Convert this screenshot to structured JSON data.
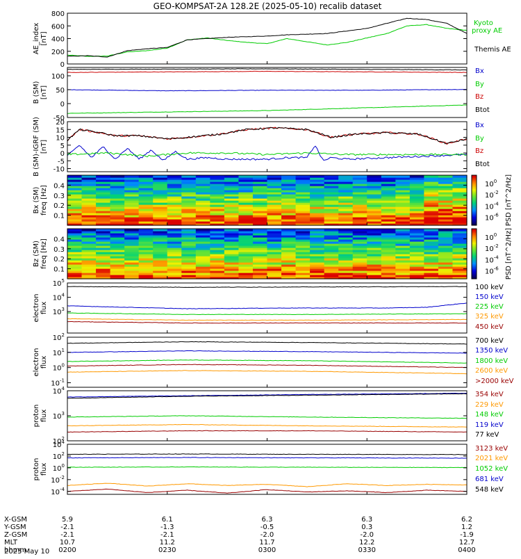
{
  "title": "GEO-KOMPSAT-2A 128.2E (2025-05-10) recalib dataset",
  "chart_data": [
    {
      "id": "ae",
      "type": "line",
      "ylabel_lines": [
        "AE_index",
        "[nT]"
      ],
      "ylim": [
        0,
        800
      ],
      "yticks": [
        "0",
        "200",
        "400",
        "600",
        "800"
      ],
      "series": [
        {
          "name": "Kyoto proxy AE",
          "color": "#00cc00",
          "x": [
            0,
            0.05,
            0.1,
            0.15,
            0.2,
            0.25,
            0.3,
            0.35,
            0.4,
            0.45,
            0.5,
            0.55,
            0.6,
            0.65,
            0.7,
            0.75,
            0.8,
            0.85,
            0.9,
            0.95,
            1.0
          ],
          "values": [
            140,
            120,
            125,
            190,
            210,
            250,
            380,
            410,
            370,
            340,
            320,
            400,
            350,
            300,
            340,
            410,
            480,
            600,
            620,
            560,
            530
          ]
        },
        {
          "name": "Themis AE",
          "color": "#000000",
          "x": [
            0,
            0.05,
            0.1,
            0.15,
            0.2,
            0.25,
            0.3,
            0.35,
            0.4,
            0.45,
            0.5,
            0.55,
            0.6,
            0.65,
            0.7,
            0.75,
            0.8,
            0.85,
            0.9,
            0.95,
            1.0
          ],
          "values": [
            120,
            130,
            110,
            210,
            240,
            260,
            380,
            400,
            420,
            430,
            440,
            460,
            470,
            480,
            520,
            560,
            640,
            720,
            700,
            640,
            480
          ]
        }
      ]
    },
    {
      "id": "bsm",
      "type": "line",
      "ylabel_lines": [
        "B (SM)",
        "[nT]"
      ],
      "ylim": [
        -50,
        130
      ],
      "yticks": [
        "-50",
        "0",
        "50",
        "100"
      ],
      "series": [
        {
          "name": "Bx",
          "color": "#0000cc",
          "x": [
            0,
            0.25,
            0.5,
            0.75,
            1
          ],
          "values": [
            50,
            46,
            48,
            48,
            51
          ]
        },
        {
          "name": "By",
          "color": "#00cc00",
          "x": [
            0,
            0.25,
            0.5,
            0.75,
            1
          ],
          "values": [
            -35,
            -30,
            -25,
            -15,
            -5
          ]
        },
        {
          "name": "Bz",
          "color": "#cc0000",
          "x": [
            0,
            0.25,
            0.5,
            0.75,
            1
          ],
          "values": [
            112,
            114,
            116,
            114,
            112
          ]
        },
        {
          "name": "Btot",
          "color": "#000000",
          "x": [
            0,
            0.25,
            0.5,
            0.75,
            1
          ],
          "values": [
            123,
            124,
            125,
            123,
            121
          ]
        }
      ]
    },
    {
      "id": "bigrf",
      "type": "line",
      "ylabel_lines": [
        "B (SM)-IGRF (SM)",
        "[nT]"
      ],
      "ylim": [
        -12,
        20
      ],
      "yticks": [
        "-10",
        "-5",
        "0",
        "5",
        "10",
        "15",
        "20"
      ],
      "series": [
        {
          "name": "Bx",
          "color": "#0000cc",
          "x": [
            0,
            0.03,
            0.06,
            0.09,
            0.12,
            0.15,
            0.18,
            0.21,
            0.24,
            0.27,
            0.3,
            0.35,
            0.4,
            0.5,
            0.55,
            0.6,
            0.62,
            0.64,
            0.66,
            0.7,
            0.8,
            0.9,
            1.0
          ],
          "values": [
            -2,
            5,
            -3,
            4,
            -4,
            3,
            -4,
            2,
            -5,
            1,
            -4,
            -3,
            -4,
            -4,
            -3,
            -3,
            5,
            -5,
            -3,
            -4,
            -3,
            -2,
            -1
          ]
        },
        {
          "name": "By",
          "color": "#00cc00",
          "x": [
            0,
            0.1,
            0.2,
            0.3,
            0.4,
            0.5,
            0.6,
            0.7,
            0.8,
            0.9,
            1.0
          ],
          "values": [
            -1,
            0,
            -2,
            0,
            0,
            -1,
            0,
            -1,
            -1,
            -1,
            -1
          ]
        },
        {
          "name": "Bz",
          "color": "#cc0000",
          "x": [
            0,
            0.03,
            0.08,
            0.12,
            0.18,
            0.25,
            0.3,
            0.38,
            0.45,
            0.52,
            0.6,
            0.66,
            0.72,
            0.8,
            0.88,
            0.95,
            1.0
          ],
          "values": [
            8,
            15,
            13,
            11,
            11,
            9,
            10,
            12,
            15,
            16,
            15,
            10,
            12,
            13,
            12,
            6,
            9
          ]
        },
        {
          "name": "Btot",
          "color": "#000000",
          "x": [
            0,
            0.03,
            0.08,
            0.12,
            0.18,
            0.25,
            0.3,
            0.38,
            0.45,
            0.52,
            0.6,
            0.66,
            0.72,
            0.8,
            0.88,
            0.95,
            1.0
          ],
          "values": [
            8,
            15,
            13,
            11,
            11,
            9,
            10,
            12,
            15,
            16,
            15,
            10,
            12,
            13,
            12,
            6,
            9
          ]
        }
      ]
    },
    {
      "id": "bx_spec",
      "type": "heatmap",
      "ylabel_lines": [
        "Bx (SM)",
        "freq [Hz]"
      ],
      "ylim": [
        0.0,
        0.5
      ],
      "yticks": [
        "0.1",
        "0.2",
        "0.3",
        "0.4"
      ],
      "colorbar_label": "PSD [nT^2/Hz]",
      "colorbar_ticks": [
        "10^0",
        "10^-2",
        "10^-4",
        "10^-6"
      ]
    },
    {
      "id": "bz_spec",
      "type": "heatmap",
      "ylabel_lines": [
        "Bz (SM)",
        "freq [Hz]"
      ],
      "ylim": [
        0.0,
        0.5
      ],
      "yticks": [
        "0.1",
        "0.2",
        "0.3",
        "0.4"
      ],
      "colorbar_label": "PSD [nT^2/Hz]",
      "colorbar_ticks": [
        "10^0",
        "10^-2",
        "10^-4",
        "10^-6"
      ]
    },
    {
      "id": "elec_low",
      "type": "line",
      "log": true,
      "ylabel_lines": [
        "electron",
        "flux"
      ],
      "ylim_exp": [
        1.5,
        5
      ],
      "yticks": [
        "10^3",
        "10^4",
        "10^5"
      ],
      "series": [
        {
          "name": "100 keV",
          "color": "#000000",
          "x": [
            0,
            0.3,
            0.6,
            1
          ],
          "values_exp": [
            4.75,
            4.7,
            4.72,
            4.75
          ]
        },
        {
          "name": "150 keV",
          "color": "#0000cc",
          "x": [
            0,
            0.3,
            0.55,
            0.8,
            0.9,
            1
          ],
          "values_exp": [
            3.4,
            3.2,
            3.25,
            3.25,
            3.3,
            3.6
          ]
        },
        {
          "name": "225 keV",
          "color": "#00cc00",
          "x": [
            0,
            0.3,
            0.6,
            1
          ],
          "values_exp": [
            2.9,
            2.8,
            2.8,
            2.85
          ]
        },
        {
          "name": "325 keV",
          "color": "#ff9900",
          "x": [
            0,
            0.3,
            0.6,
            1
          ],
          "values_exp": [
            2.5,
            2.4,
            2.4,
            2.45
          ]
        },
        {
          "name": "450 keV",
          "color": "#990000",
          "x": [
            0,
            0.3,
            0.6,
            1
          ],
          "values_exp": [
            2.3,
            2.2,
            2.2,
            2.2
          ]
        }
      ]
    },
    {
      "id": "elec_high",
      "type": "line",
      "log": true,
      "ylabel_lines": [
        "electron",
        "flux"
      ],
      "ylim_exp": [
        -1.3,
        2
      ],
      "yticks": [
        "10^-1",
        "10^0",
        "10^1",
        "10^2"
      ],
      "series": [
        {
          "name": "700 keV",
          "color": "#000000",
          "x": [
            0,
            0.3,
            0.6,
            1
          ],
          "values_exp": [
            1.6,
            1.7,
            1.65,
            1.55
          ]
        },
        {
          "name": "1350 keV",
          "color": "#0000cc",
          "x": [
            0,
            0.3,
            0.6,
            1
          ],
          "values_exp": [
            1.0,
            1.1,
            1.05,
            0.95
          ]
        },
        {
          "name": "1800 keV",
          "color": "#00cc00",
          "x": [
            0,
            0.3,
            0.6,
            1
          ],
          "values_exp": [
            0.4,
            0.5,
            0.45,
            0.3
          ]
        },
        {
          "name": "2600 keV",
          "color": "#ff9900",
          "x": [
            0,
            0.3,
            0.6,
            1
          ],
          "values_exp": [
            -0.3,
            -0.2,
            -0.25,
            -0.4
          ]
        },
        {
          "name": ">2000 keV",
          "color": "#990000",
          "x": [
            0,
            0.3,
            0.6,
            1
          ],
          "values_exp": [
            0.1,
            0.2,
            0.15,
            0.0
          ]
        }
      ]
    },
    {
      "id": "prot_low",
      "type": "line",
      "log": true,
      "ylabel_lines": [
        "proton",
        "flux"
      ],
      "ylim_exp": [
        2,
        4
      ],
      "yticks": [
        "10^2",
        "10^3",
        "10^4"
      ],
      "series": [
        {
          "name": "354 keV",
          "color": "#990000",
          "x": [
            0,
            0.3,
            0.6,
            1
          ],
          "values_exp": [
            2.35,
            2.4,
            2.4,
            2.35
          ]
        },
        {
          "name": "229 keV",
          "color": "#ff9900",
          "x": [
            0,
            0.3,
            0.6,
            1
          ],
          "values_exp": [
            2.6,
            2.65,
            2.6,
            2.55
          ]
        },
        {
          "name": "148 keV",
          "color": "#00cc00",
          "x": [
            0,
            0.3,
            0.6,
            1
          ],
          "values_exp": [
            2.95,
            3.0,
            2.95,
            2.9
          ]
        },
        {
          "name": "119 keV",
          "color": "#0000cc",
          "x": [
            0,
            0.3,
            0.6,
            1
          ],
          "values_exp": [
            3.75,
            3.8,
            3.85,
            3.9
          ]
        },
        {
          "name": "77 keV",
          "color": "#000000",
          "x": [
            0,
            0.3,
            0.6,
            1
          ],
          "values_exp": [
            3.7,
            3.78,
            3.82,
            3.88
          ]
        }
      ]
    },
    {
      "id": "prot_high",
      "type": "line",
      "log": true,
      "ylabel_lines": [
        "proton",
        "flux"
      ],
      "ylim_exp": [
        -4.5,
        4
      ],
      "yticks": [
        "10^-4",
        "10^-2",
        "10^0",
        "10^2",
        "10^4"
      ],
      "series": [
        {
          "name": "3123 keV",
          "color": "#990000",
          "x": [
            0,
            0.1,
            0.2,
            0.3,
            0.4,
            0.5,
            0.6,
            0.7,
            0.8,
            0.9,
            1
          ],
          "values_exp": [
            -4,
            -3.6,
            -4.2,
            -3.8,
            -4.3,
            -3.7,
            -4.1,
            -3.9,
            -4.2,
            -3.8,
            -4.0
          ]
        },
        {
          "name": "2021 keV",
          "color": "#ff9900",
          "x": [
            0,
            0.1,
            0.2,
            0.3,
            0.4,
            0.5,
            0.6,
            0.7,
            0.8,
            0.9,
            1
          ],
          "values_exp": [
            -3,
            -2.6,
            -3.1,
            -2.7,
            -3.0,
            -2.8,
            -3.2,
            -2.7,
            -3.0,
            -2.8,
            -2.9
          ]
        },
        {
          "name": "1052 keV",
          "color": "#00cc00",
          "x": [
            0,
            0.3,
            0.6,
            1
          ],
          "values_exp": [
            0.1,
            0.15,
            0.1,
            0.05
          ]
        },
        {
          "name": "681 keV",
          "color": "#0000cc",
          "x": [
            0,
            0.3,
            0.6,
            1
          ],
          "values_exp": [
            1.7,
            1.75,
            1.7,
            1.65
          ]
        },
        {
          "name": "548 keV",
          "color": "#000000",
          "x": [
            0,
            0.3,
            0.6,
            1
          ],
          "values_exp": [
            2.3,
            2.35,
            2.3,
            2.25
          ]
        }
      ]
    }
  ],
  "ae_legend": {
    "kyoto": "Kyoto proxy AE",
    "themis": "Themis AE"
  },
  "xaxis": {
    "rows": [
      {
        "label": "X-GSM",
        "values": [
          "5.9",
          "6.1",
          "6.3",
          "6.3",
          "6.2"
        ]
      },
      {
        "label": "Y-GSM",
        "values": [
          "-2.1",
          "-1.3",
          "-0.5",
          "0.3",
          "1.2"
        ]
      },
      {
        "label": "Z-GSM",
        "values": [
          "-2.1",
          "-2.1",
          "-2.0",
          "-2.0",
          "-1.9"
        ]
      },
      {
        "label": "MLT",
        "values": [
          "10.7",
          "11.2",
          "11.7",
          "12.2",
          "12.7"
        ]
      },
      {
        "label": "hhmm",
        "values": [
          "0200",
          "0230",
          "0300",
          "0330",
          "0400"
        ]
      }
    ],
    "date": "2025 May 10"
  }
}
